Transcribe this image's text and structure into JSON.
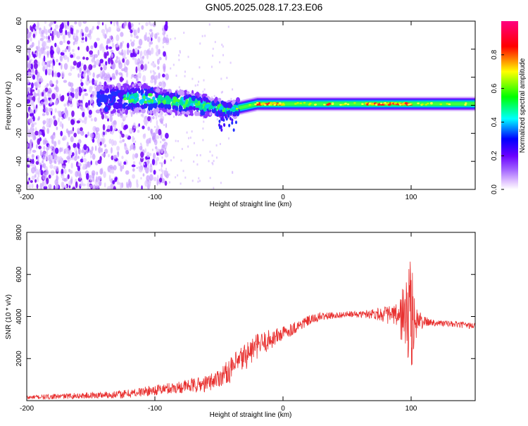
{
  "title": "GN05.2025.028.17.23.E06",
  "colors": {
    "snr_line": "#e8302f",
    "background": "#ffffff",
    "axis": "#000000"
  },
  "chart_data": [
    {
      "type": "heatmap",
      "name": "spectrogram",
      "xlabel": "Height of straight line (km)",
      "ylabel": "Frequency (Hz)",
      "xlim": [
        -200,
        150
      ],
      "ylim": [
        -60,
        60
      ],
      "xticks": [
        -200,
        -100,
        0,
        100
      ],
      "yticks": [
        -60,
        -40,
        -20,
        0,
        20,
        40,
        60
      ],
      "colorbar": {
        "label": "Normalized spectral amplitude",
        "range": [
          0,
          1
        ],
        "ticks": [
          0.0,
          0.2,
          0.4,
          0.6,
          0.8
        ],
        "tick_labels": [
          "0.0",
          "0.2",
          "0.4",
          "0.6",
          "0.8"
        ],
        "colormap": [
          "#ffffff",
          "#e6ccff",
          "#6a00ff",
          "#0000ff",
          "#00ffff",
          "#00ff00",
          "#ffff00",
          "#ff0000",
          "#ff0080"
        ]
      },
      "features": {
        "noise_region_km": [
          -200,
          -110
        ],
        "signal_band_center_hz": [
          [
            -140,
            4
          ],
          [
            -110,
            5
          ],
          [
            -90,
            3
          ],
          [
            -70,
            1
          ],
          [
            -50,
            -2
          ],
          [
            -40,
            -3
          ],
          [
            -30,
            -1
          ],
          [
            -20,
            1
          ],
          [
            0,
            1
          ],
          [
            50,
            1
          ],
          [
            100,
            1
          ],
          [
            150,
            1
          ]
        ],
        "peak_segments_km": [
          [
            -20,
            0
          ],
          [
            35,
            37
          ],
          [
            65,
            100
          ]
        ]
      }
    },
    {
      "type": "line",
      "name": "snr",
      "xlabel": "Height of straight line (km)",
      "ylabel": "SNR (10 * v/v)",
      "xlim": [
        -200,
        150
      ],
      "ylim": [
        0,
        8000
      ],
      "xticks": [
        -200,
        -100,
        0,
        100
      ],
      "yticks": [
        2000,
        4000,
        6000,
        8000
      ],
      "series": [
        {
          "name": "SNR",
          "x": [
            -200,
            -150,
            -125,
            -100,
            -80,
            -60,
            -50,
            -40,
            -30,
            -20,
            -10,
            0,
            10,
            20,
            30,
            40,
            50,
            60,
            70,
            80,
            90,
            95,
            100,
            105,
            110,
            120,
            130,
            140,
            150
          ],
          "y": [
            150,
            250,
            300,
            500,
            650,
            800,
            1100,
            1500,
            2100,
            2600,
            2900,
            3200,
            3500,
            3800,
            4000,
            4050,
            4100,
            4100,
            4150,
            4100,
            4000,
            4000,
            4000,
            3800,
            3750,
            3700,
            3650,
            3600,
            3550
          ],
          "noise": [
            100,
            150,
            200,
            250,
            300,
            400,
            450,
            600,
            700,
            600,
            500,
            350,
            300,
            250,
            200,
            150,
            150,
            150,
            250,
            400,
            600,
            2000,
            2800,
            600,
            250,
            150,
            150,
            150,
            150
          ]
        }
      ]
    }
  ]
}
